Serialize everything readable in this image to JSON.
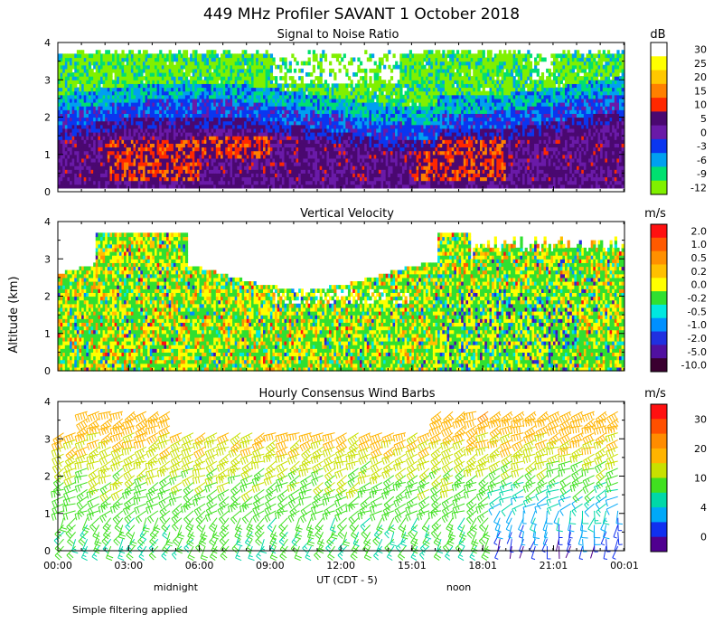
{
  "figure": {
    "title": "449 MHz Profiler SAVANT  1 October 2018",
    "ylabel": "Altitude (km)",
    "xlabel": "UT  (CDT - 5)",
    "day_labels": [
      {
        "text": "midnight",
        "hour": 5.0
      },
      {
        "text": "noon",
        "hour": 17.0
      }
    ],
    "footnote": "Simple filtering applied",
    "xlim": [
      0,
      24.03
    ],
    "xticks": [
      0,
      3,
      6,
      9,
      12,
      15.02,
      18.02,
      21.02,
      24.03
    ],
    "xtick_labels": [
      "00:00",
      "03:00",
      "06:00",
      "09:00",
      "12:00",
      "15:01",
      "18:01",
      "21:01",
      "00:01"
    ],
    "ylim": [
      0,
      4
    ],
    "yticks": [
      0,
      1,
      2,
      3,
      4
    ]
  },
  "chart_data": [
    {
      "type": "heatmap",
      "title": "Signal to Noise Ratio",
      "xlabel": "UT  (CDT - 5)",
      "ylabel": "Altitude (km)",
      "unit": "dB",
      "scale": [
        {
          "label": "30",
          "color": "#ffffff"
        },
        {
          "label": "25",
          "color": "#ffff00"
        },
        {
          "label": "20",
          "color": "#ffc800"
        },
        {
          "label": "15",
          "color": "#ff8000"
        },
        {
          "label": "10",
          "color": "#ff2800"
        },
        {
          "label": "5",
          "color": "#4a0870"
        },
        {
          "label": "0",
          "color": "#6a1aa8"
        },
        {
          "label": "-3",
          "color": "#0a36f0"
        },
        {
          "label": "-6",
          "color": "#00a0f0"
        },
        {
          "label": "-9",
          "color": "#00e070"
        },
        {
          "label": "-12",
          "color": "#80f000"
        }
      ]
    },
    {
      "type": "heatmap",
      "title": "Vertical Velocity",
      "xlabel": "UT  (CDT - 5)",
      "ylabel": "Altitude (km)",
      "unit": "m/s",
      "scale": [
        {
          "label": "2.0",
          "color": "#ff1010"
        },
        {
          "label": "1.0",
          "color": "#ff5a00"
        },
        {
          "label": "0.5",
          "color": "#ff9000"
        },
        {
          "label": "0.2",
          "color": "#ffc000"
        },
        {
          "label": "0.0",
          "color": "#ffff00"
        },
        {
          "label": "-0.2",
          "color": "#30e030"
        },
        {
          "label": "-0.5",
          "color": "#00e8e0"
        },
        {
          "label": "-1.0",
          "color": "#0090ff"
        },
        {
          "label": "-2.0",
          "color": "#2030e0"
        },
        {
          "label": "-5.0",
          "color": "#5010a0"
        },
        {
          "label": "-10.0",
          "color": "#3a0030"
        }
      ]
    },
    {
      "type": "scatter",
      "title": "Hourly Consensus Wind Barbs",
      "xlabel": "UT  (CDT - 5)",
      "ylabel": "Altitude (km)",
      "unit": "m/s",
      "scale": [
        {
          "value": 34,
          "label": "",
          "color": "#ff1010"
        },
        {
          "value": 30,
          "label": "30",
          "color": "#ff5000"
        },
        {
          "value": 25,
          "label": "",
          "color": "#ff8c00"
        },
        {
          "value": 20,
          "label": "20",
          "color": "#ffb400"
        },
        {
          "value": 15,
          "label": "",
          "color": "#c8e000"
        },
        {
          "value": 10,
          "label": "10",
          "color": "#40e020"
        },
        {
          "value": 7,
          "label": "",
          "color": "#00d8a8"
        },
        {
          "value": 4,
          "label": "4",
          "color": "#00a8f8"
        },
        {
          "value": 2,
          "label": "",
          "color": "#1030f0"
        },
        {
          "value": 0,
          "label": "0",
          "color": "#500090"
        }
      ],
      "speed_by_height": {
        "heights_km": [
          0.1,
          0.5,
          1.0,
          1.5,
          2.0,
          2.5,
          3.0,
          3.5,
          3.9
        ],
        "speed_ms": [
          10,
          11,
          12,
          13,
          15,
          17,
          20,
          23,
          24
        ],
        "nocturnal_jet_speed_ms": [
          2,
          4,
          6,
          8,
          12,
          17,
          20,
          23,
          24
        ]
      },
      "nocturnal_jet_hours": [
        18.5,
        24.0
      ],
      "time_step_hours": 0.5,
      "height_step_km": 0.19
    }
  ]
}
